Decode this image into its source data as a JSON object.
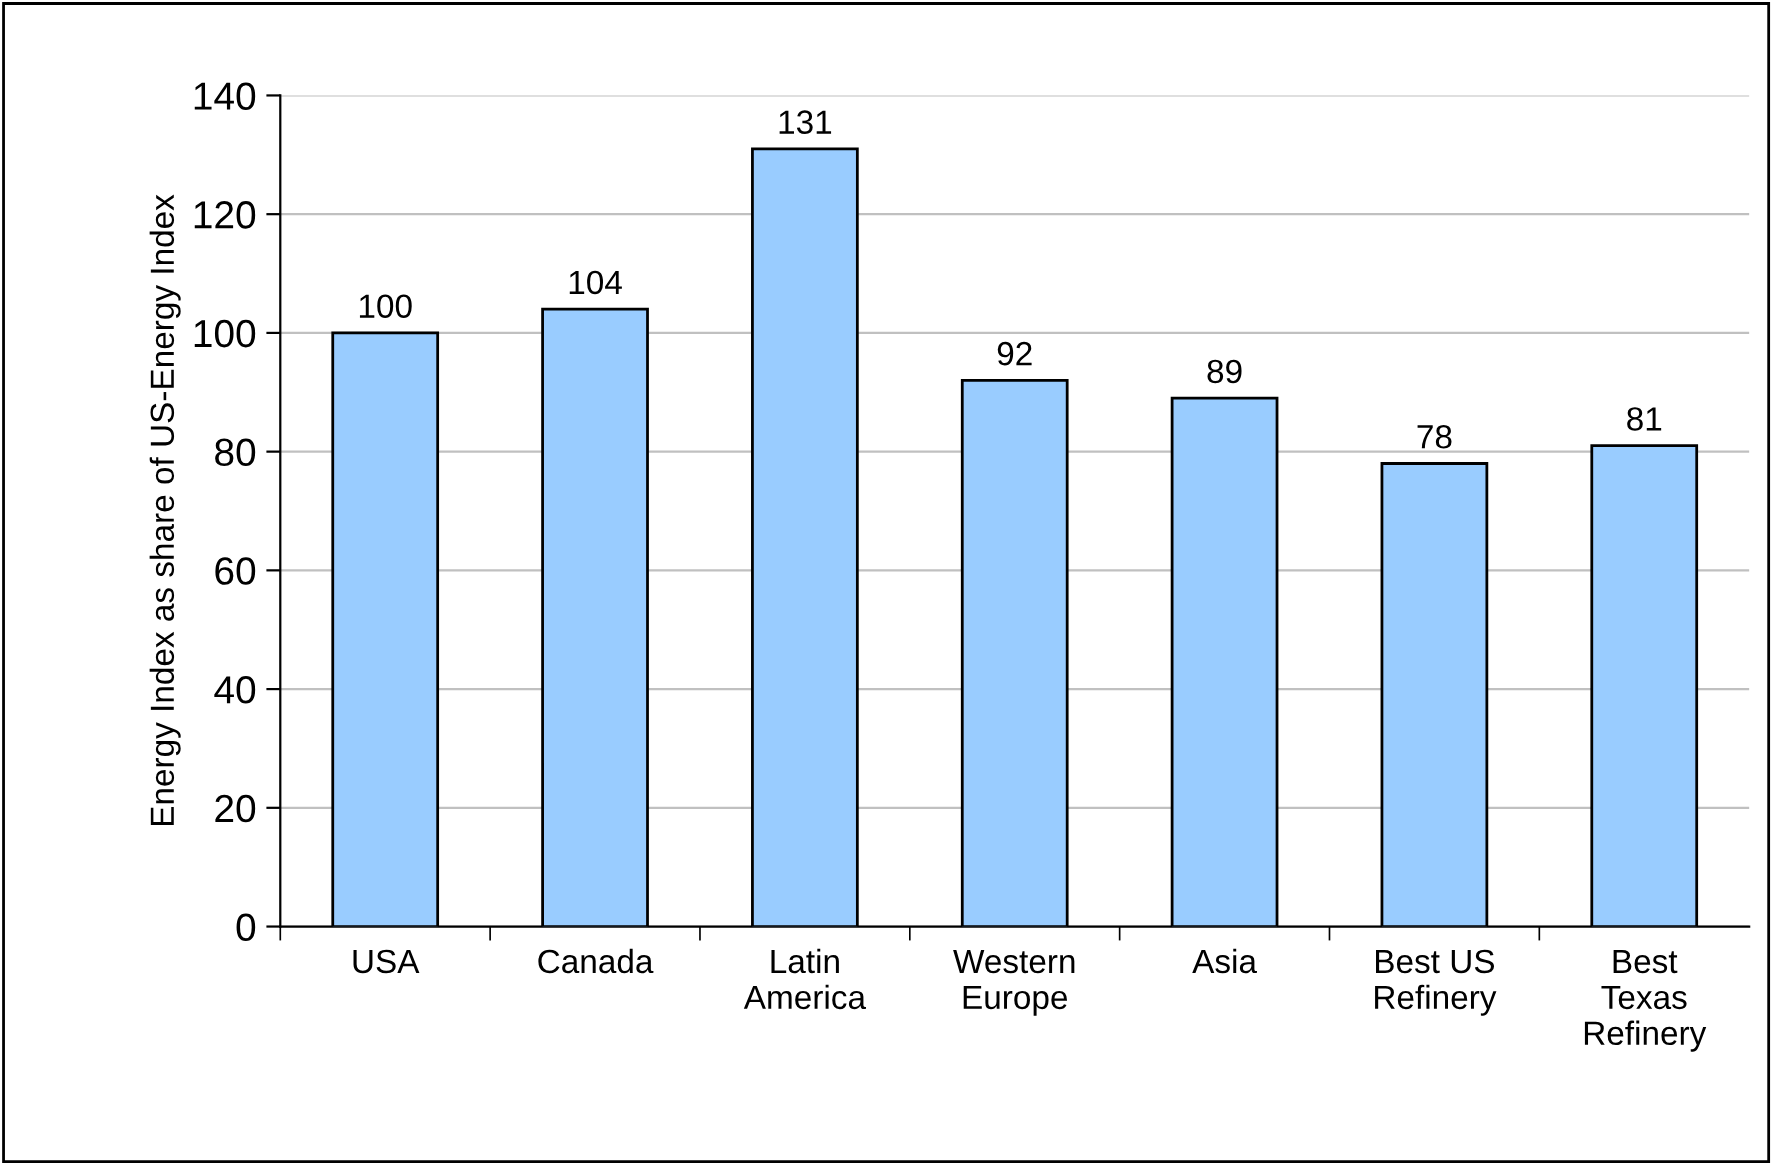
{
  "chart_data": {
    "type": "bar",
    "ylabel": "Energy Index as share of US-Energy Index",
    "categories": [
      "USA",
      "Canada",
      "Latin\nAmerica",
      "Western\nEurope",
      "Asia",
      "Best US\nRefinery",
      "Best\nTexas\nRefinery"
    ],
    "values": [
      100,
      104,
      131,
      92,
      89,
      78,
      81
    ],
    "color": "#99ccff",
    "ylim": [
      0,
      140
    ],
    "yticks": [
      0,
      20,
      40,
      60,
      80,
      100,
      120,
      140
    ],
    "grid": "y",
    "data_labels": true
  }
}
